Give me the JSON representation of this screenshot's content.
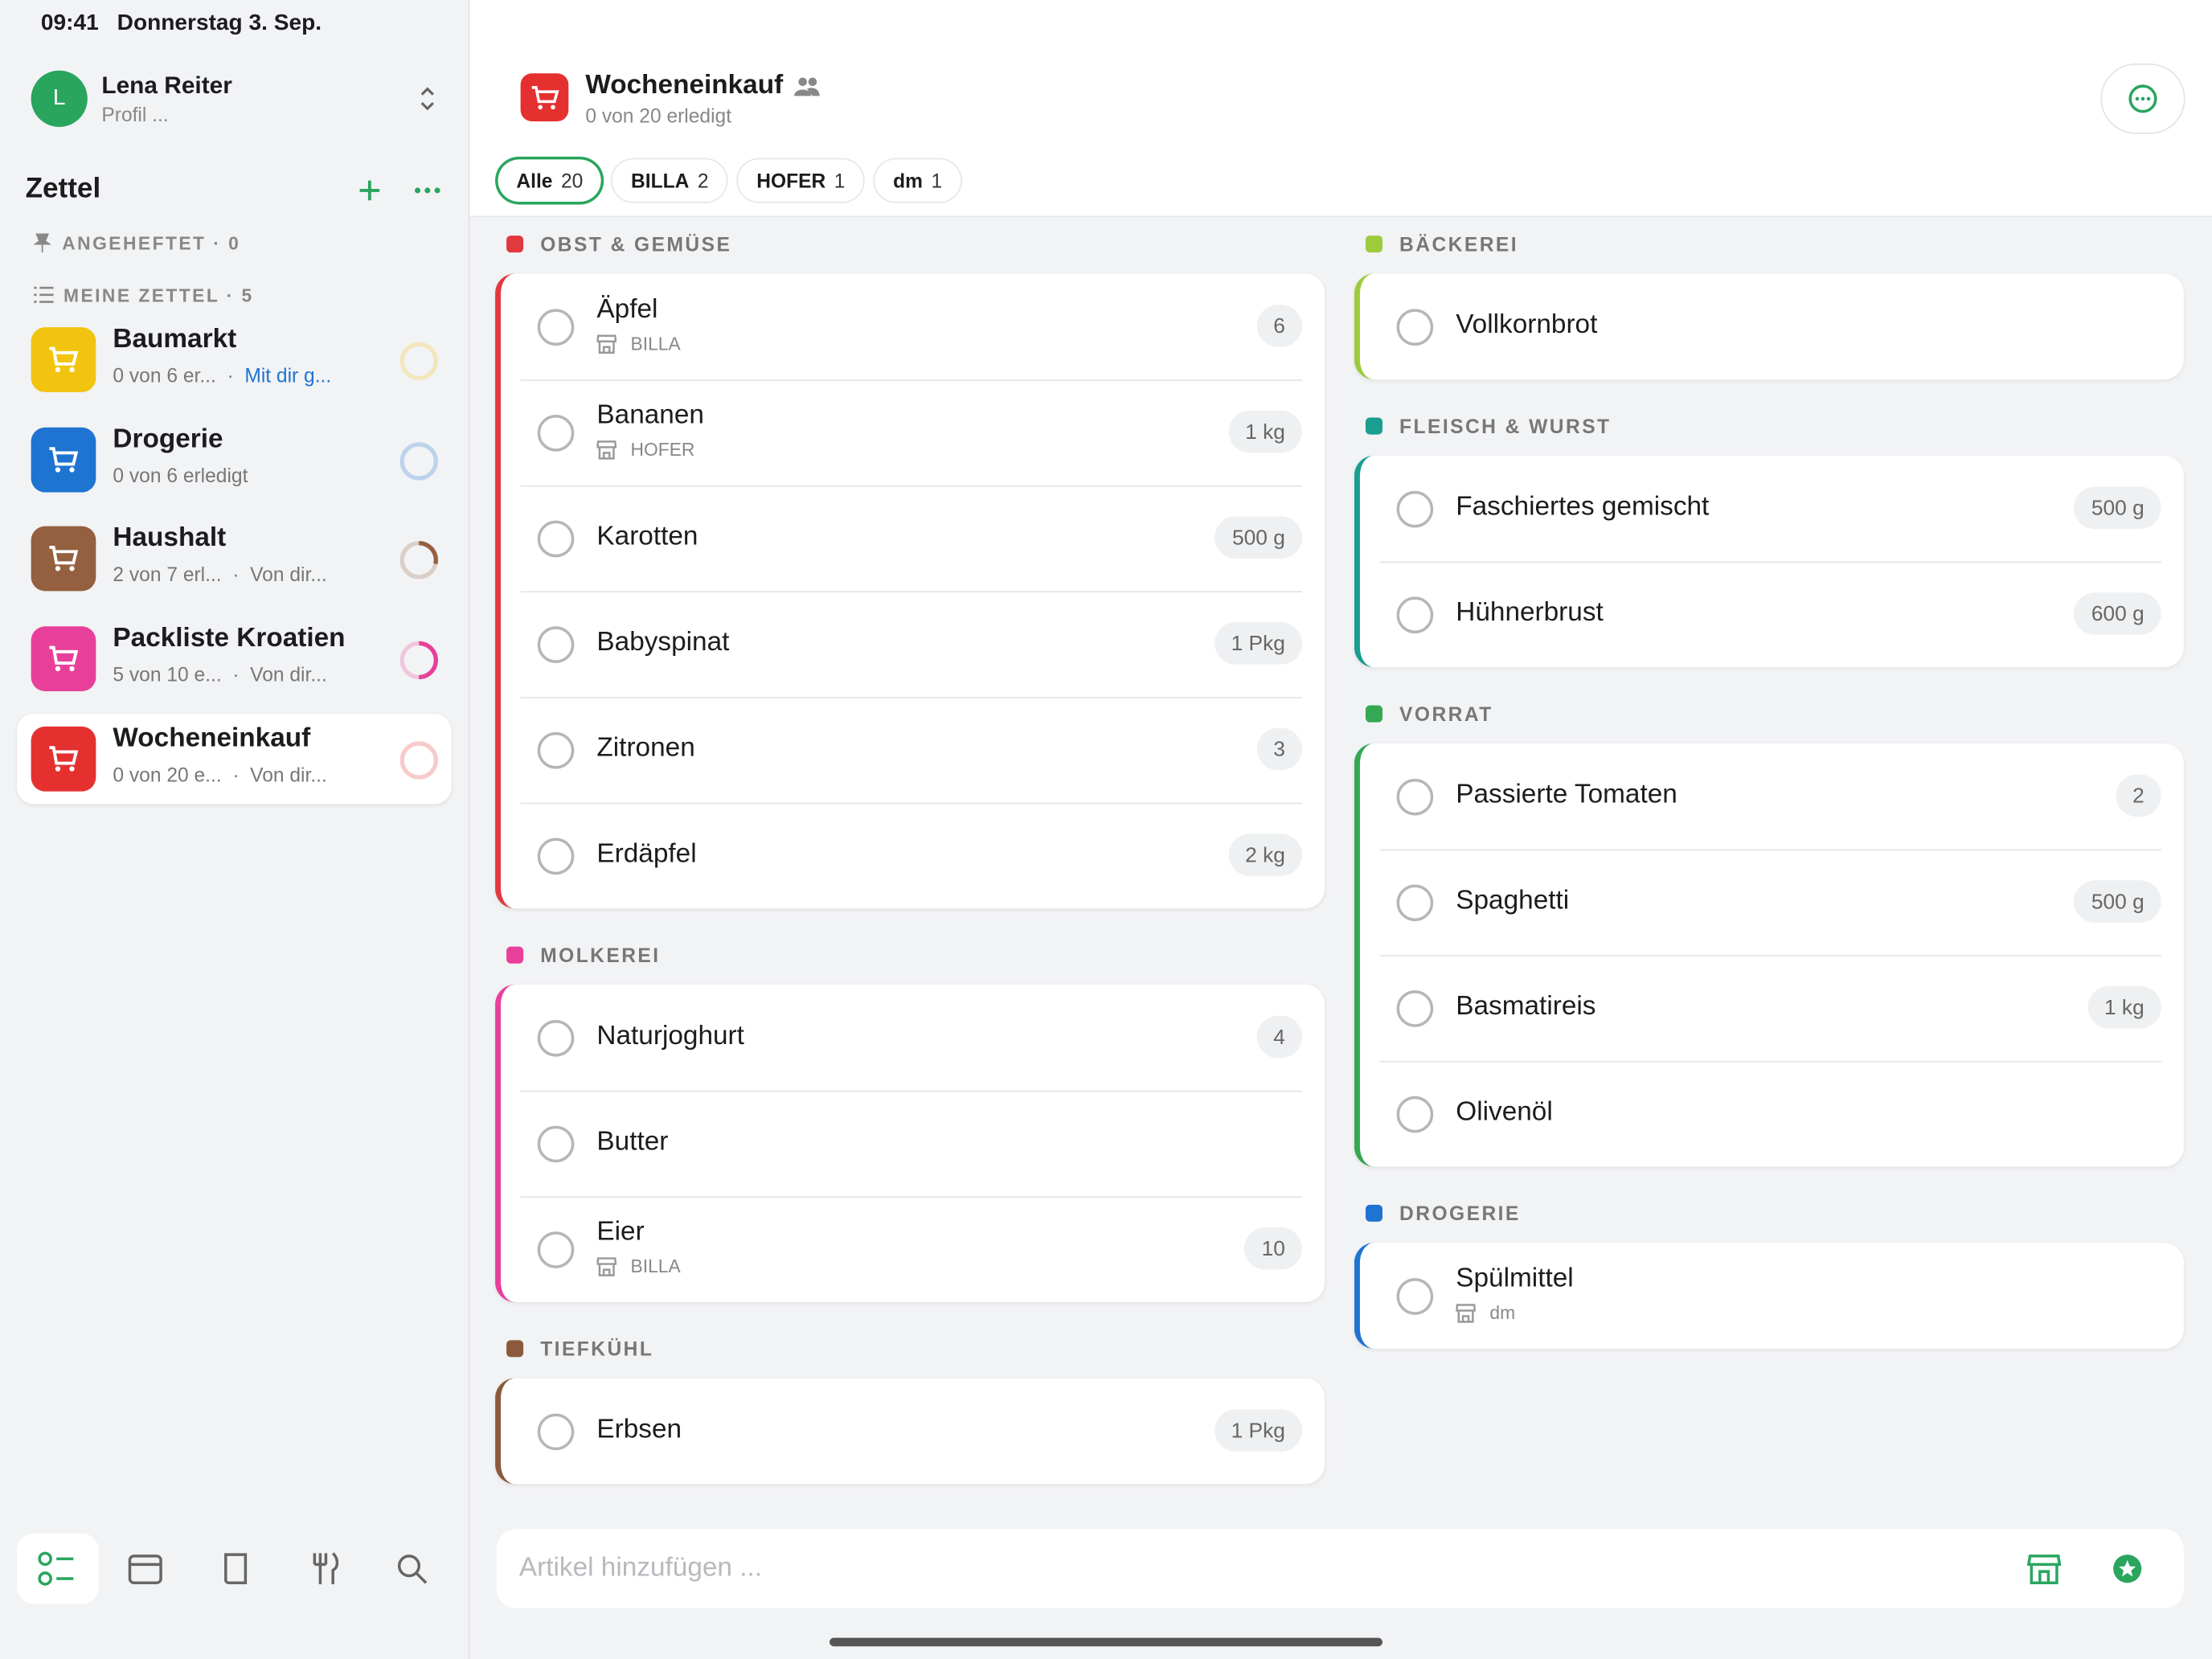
{
  "status_bar": {
    "time": "09:41",
    "date": "Donnerstag 3. Sep."
  },
  "profile": {
    "initial": "L",
    "name": "Lena Reiter",
    "subtitle": "Profil ..."
  },
  "sidebar": {
    "title": "Zettel",
    "pinned": "ANGEHEFTET · 0",
    "mine": "MEINE ZETTEL · 5",
    "lists": [
      {
        "name": "Baumarkt",
        "progress": "0 von 6 er...",
        "shared": "Mit dir g...",
        "color": "#f2c40f",
        "ring_color": "#f2c40f",
        "done": 0,
        "total": 6
      },
      {
        "name": "Drogerie",
        "progress": "0 von 6 erledigt",
        "color": "#1f74d1",
        "ring_color": "#1f74d1",
        "done": 0,
        "total": 6
      },
      {
        "name": "Haushalt",
        "progress": "2 von 7 erl...",
        "shared": "Von dir...",
        "color": "#94603f",
        "ring_color": "#94603f",
        "done": 2,
        "total": 7
      },
      {
        "name": "Packliste Kroatien",
        "progress": "5 von 10 e...",
        "shared": "Von dir...",
        "color": "#e8409a",
        "ring_color": "#e8409a",
        "done": 5,
        "total": 10
      },
      {
        "name": "Wocheneinkauf",
        "progress": "0 von 20 e...",
        "shared": "Von dir...",
        "color": "#e53030",
        "ring_color": "#e53030",
        "done": 0,
        "total": 20,
        "selected": true
      }
    ]
  },
  "header": {
    "title": "Wocheneinkauf",
    "subtitle": "0 von 20 erledigt"
  },
  "filters": [
    {
      "label": "Alle",
      "count": 20,
      "active": true
    },
    {
      "label": "BILLA",
      "count": 2
    },
    {
      "label": "HOFER",
      "count": 1
    },
    {
      "label": "dm",
      "count": 1
    }
  ],
  "columns": [
    [
      {
        "title": "OBST & GEMÜSE",
        "color": "#e0393e",
        "items": [
          {
            "name": "Äpfel",
            "store": "BILLA",
            "qty": "6"
          },
          {
            "name": "Bananen",
            "store": "HOFER",
            "qty": "1 kg"
          },
          {
            "name": "Karotten",
            "qty": "500 g"
          },
          {
            "name": "Babyspinat",
            "qty": "1 Pkg"
          },
          {
            "name": "Zitronen",
            "qty": "3"
          },
          {
            "name": "Erdäpfel",
            "qty": "2 kg"
          }
        ]
      },
      {
        "title": "MOLKEREI",
        "color": "#e8409a",
        "items": [
          {
            "name": "Naturjoghurt",
            "qty": "4"
          },
          {
            "name": "Butter"
          },
          {
            "name": "Eier",
            "store": "BILLA",
            "qty": "10"
          }
        ]
      },
      {
        "title": "TIEFKÜHL",
        "color": "#8b5a3c",
        "items": [
          {
            "name": "Erbsen",
            "qty": "1 Pkg"
          }
        ]
      }
    ],
    [
      {
        "title": "BÄCKEREI",
        "color": "#9ccc3c",
        "items": [
          {
            "name": "Vollkornbrot"
          }
        ]
      },
      {
        "title": "FLEISCH & WURST",
        "color": "#1a9e8f",
        "items": [
          {
            "name": "Faschiertes gemischt",
            "qty": "500 g"
          },
          {
            "name": "Hühnerbrust",
            "qty": "600 g"
          }
        ]
      },
      {
        "title": "VORRAT",
        "color": "#34a853",
        "items": [
          {
            "name": "Passierte Tomaten",
            "qty": "2"
          },
          {
            "name": "Spaghetti",
            "qty": "500 g"
          },
          {
            "name": "Basmatireis",
            "qty": "1 kg"
          },
          {
            "name": "Olivenöl"
          }
        ]
      },
      {
        "title": "DROGERIE",
        "color": "#1f74d1",
        "items": [
          {
            "name": "Spülmittel",
            "store": "dm"
          }
        ]
      }
    ]
  ],
  "input_placeholder": "Artikel hinzufügen ..."
}
